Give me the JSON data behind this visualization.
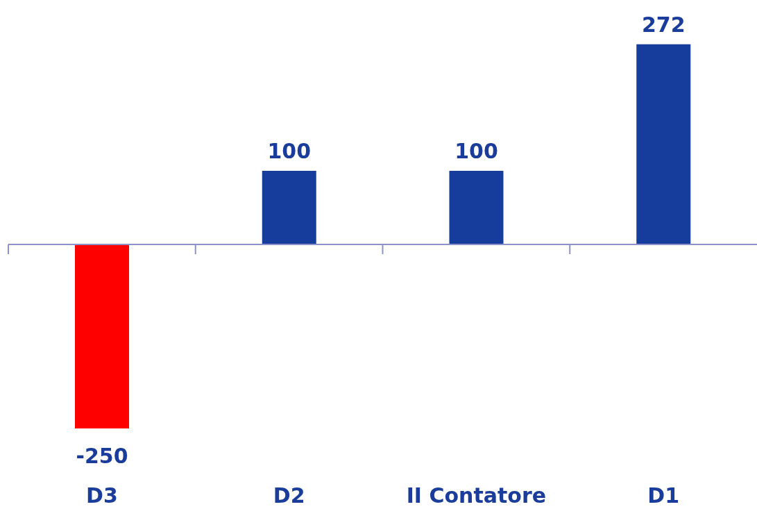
{
  "chart_data": {
    "type": "bar",
    "categories": [
      "D3",
      "D2",
      "II Contatore",
      "D1"
    ],
    "values": [
      -250,
      100,
      100,
      272
    ],
    "colors": [
      "#ff0000",
      "#163c9c",
      "#163c9c",
      "#163c9c"
    ],
    "data_labels": true,
    "ref_lines": [
      {
        "axis": "y",
        "value": 0,
        "color": "#8c93c8"
      }
    ]
  }
}
